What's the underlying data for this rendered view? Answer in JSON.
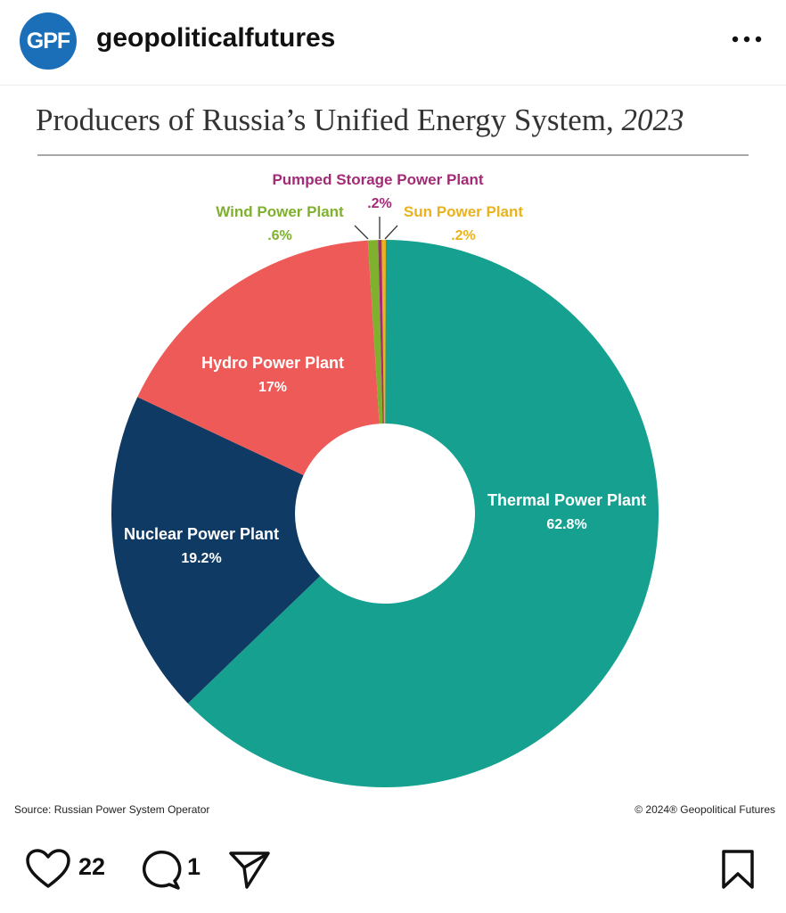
{
  "account": {
    "avatar_text": "GPF",
    "username": "geopoliticalfutures"
  },
  "post": {
    "title_main": "Producers of Russia’s Unified Energy System, ",
    "title_year": "2023",
    "source": "Source: Russian Power System Operator",
    "copyright": "© 2024® Geopolitical Futures"
  },
  "chart_data": {
    "type": "pie",
    "title": "Producers of Russia’s Unified Energy System, 2023",
    "slices": [
      {
        "name": "Thermal Power Plant",
        "value": 62.8,
        "label": "62.8%",
        "color": "#15a090",
        "label_color": "#ffffff"
      },
      {
        "name": "Nuclear Power Plant",
        "value": 19.2,
        "label": "19.2%",
        "color": "#0f3a63",
        "label_color": "#ffffff"
      },
      {
        "name": "Hydro Power Plant",
        "value": 17,
        "label": "17%",
        "color": "#ee5a57",
        "label_color": "#ffffff"
      },
      {
        "name": "Wind Power Plant",
        "value": 0.6,
        "label": ".6%",
        "color": "#7fb12f",
        "label_color": "#7fb12f"
      },
      {
        "name": "Pumped Storage Power Plant",
        "value": 0.2,
        "label": ".2%",
        "color": "#a32a77",
        "label_color": "#a32a77"
      },
      {
        "name": "Sun Power Plant",
        "value": 0.2,
        "label": ".2%",
        "color": "#e9b21e",
        "label_color": "#e9b21e"
      }
    ]
  },
  "engagement": {
    "likes": "22",
    "comments": "1"
  }
}
